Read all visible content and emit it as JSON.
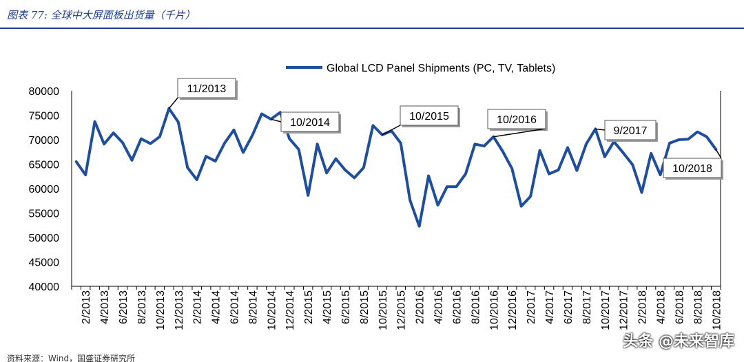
{
  "figure": {
    "title": "图表 77:  全球中大屏面板出货量（千片）",
    "source": "资料来源：Wind，国盛证券研究所",
    "watermark": "头条 @未来智库"
  },
  "chart_data": {
    "type": "line",
    "title": "",
    "xlabel": "",
    "ylabel": "",
    "ylim": [
      40000,
      80000
    ],
    "yticks": [
      40000,
      45000,
      50000,
      55000,
      60000,
      65000,
      70000,
      75000,
      80000
    ],
    "legend": {
      "label": "Global LCD Panel Shipments (PC, TV, Tablets)",
      "placement": "top-center"
    },
    "x_tick_labels": [
      "2/2013",
      "4/2013",
      "6/2013",
      "8/2013",
      "10/2013",
      "12/2013",
      "2/2014",
      "4/2014",
      "6/2014",
      "8/2014",
      "10/2014",
      "12/2014",
      "2/2015",
      "4/2015",
      "6/2015",
      "8/2015",
      "10/2015",
      "12/2015",
      "2/2016",
      "4/2016",
      "6/2016",
      "8/2016",
      "10/2016",
      "12/2016",
      "2/2017",
      "4/2017",
      "6/2017",
      "8/2017",
      "10/2017",
      "12/2017",
      "2/2018",
      "4/2018",
      "6/2018",
      "8/2018",
      "10/2018"
    ],
    "series": [
      {
        "name": "Global LCD Panel Shipments (PC, TV, Tablets)",
        "color": "#1f4e9c",
        "start": "1/2013",
        "values": [
          65500,
          62800,
          73700,
          69100,
          71400,
          69400,
          65800,
          70200,
          69200,
          70600,
          76400,
          73600,
          64300,
          61800,
          66600,
          65600,
          69300,
          72000,
          67400,
          70900,
          75300,
          74200,
          75600,
          70200,
          68000,
          58600,
          69100,
          63200,
          66100,
          63800,
          62200,
          64300,
          72900,
          71000,
          71800,
          69300,
          57600,
          52300,
          62600,
          56600,
          60400,
          60400,
          63000,
          69100,
          68700,
          70600,
          67600,
          64100,
          56400,
          58400,
          67800,
          63000,
          63800,
          68400,
          63700,
          69100,
          72200,
          66500,
          69600,
          67300,
          64900,
          59200,
          67200,
          62800,
          69300,
          70000,
          70100,
          71600,
          70600,
          68000
        ]
      }
    ],
    "annotations": [
      {
        "label": "11/2013",
        "index": 10
      },
      {
        "label": "10/2014",
        "index": 21
      },
      {
        "label": "10/2015",
        "index": 33
      },
      {
        "label": "10/2016",
        "index": 45
      },
      {
        "label": "9/2017",
        "index": 56
      },
      {
        "label": "10/2018",
        "index": 69
      }
    ]
  }
}
